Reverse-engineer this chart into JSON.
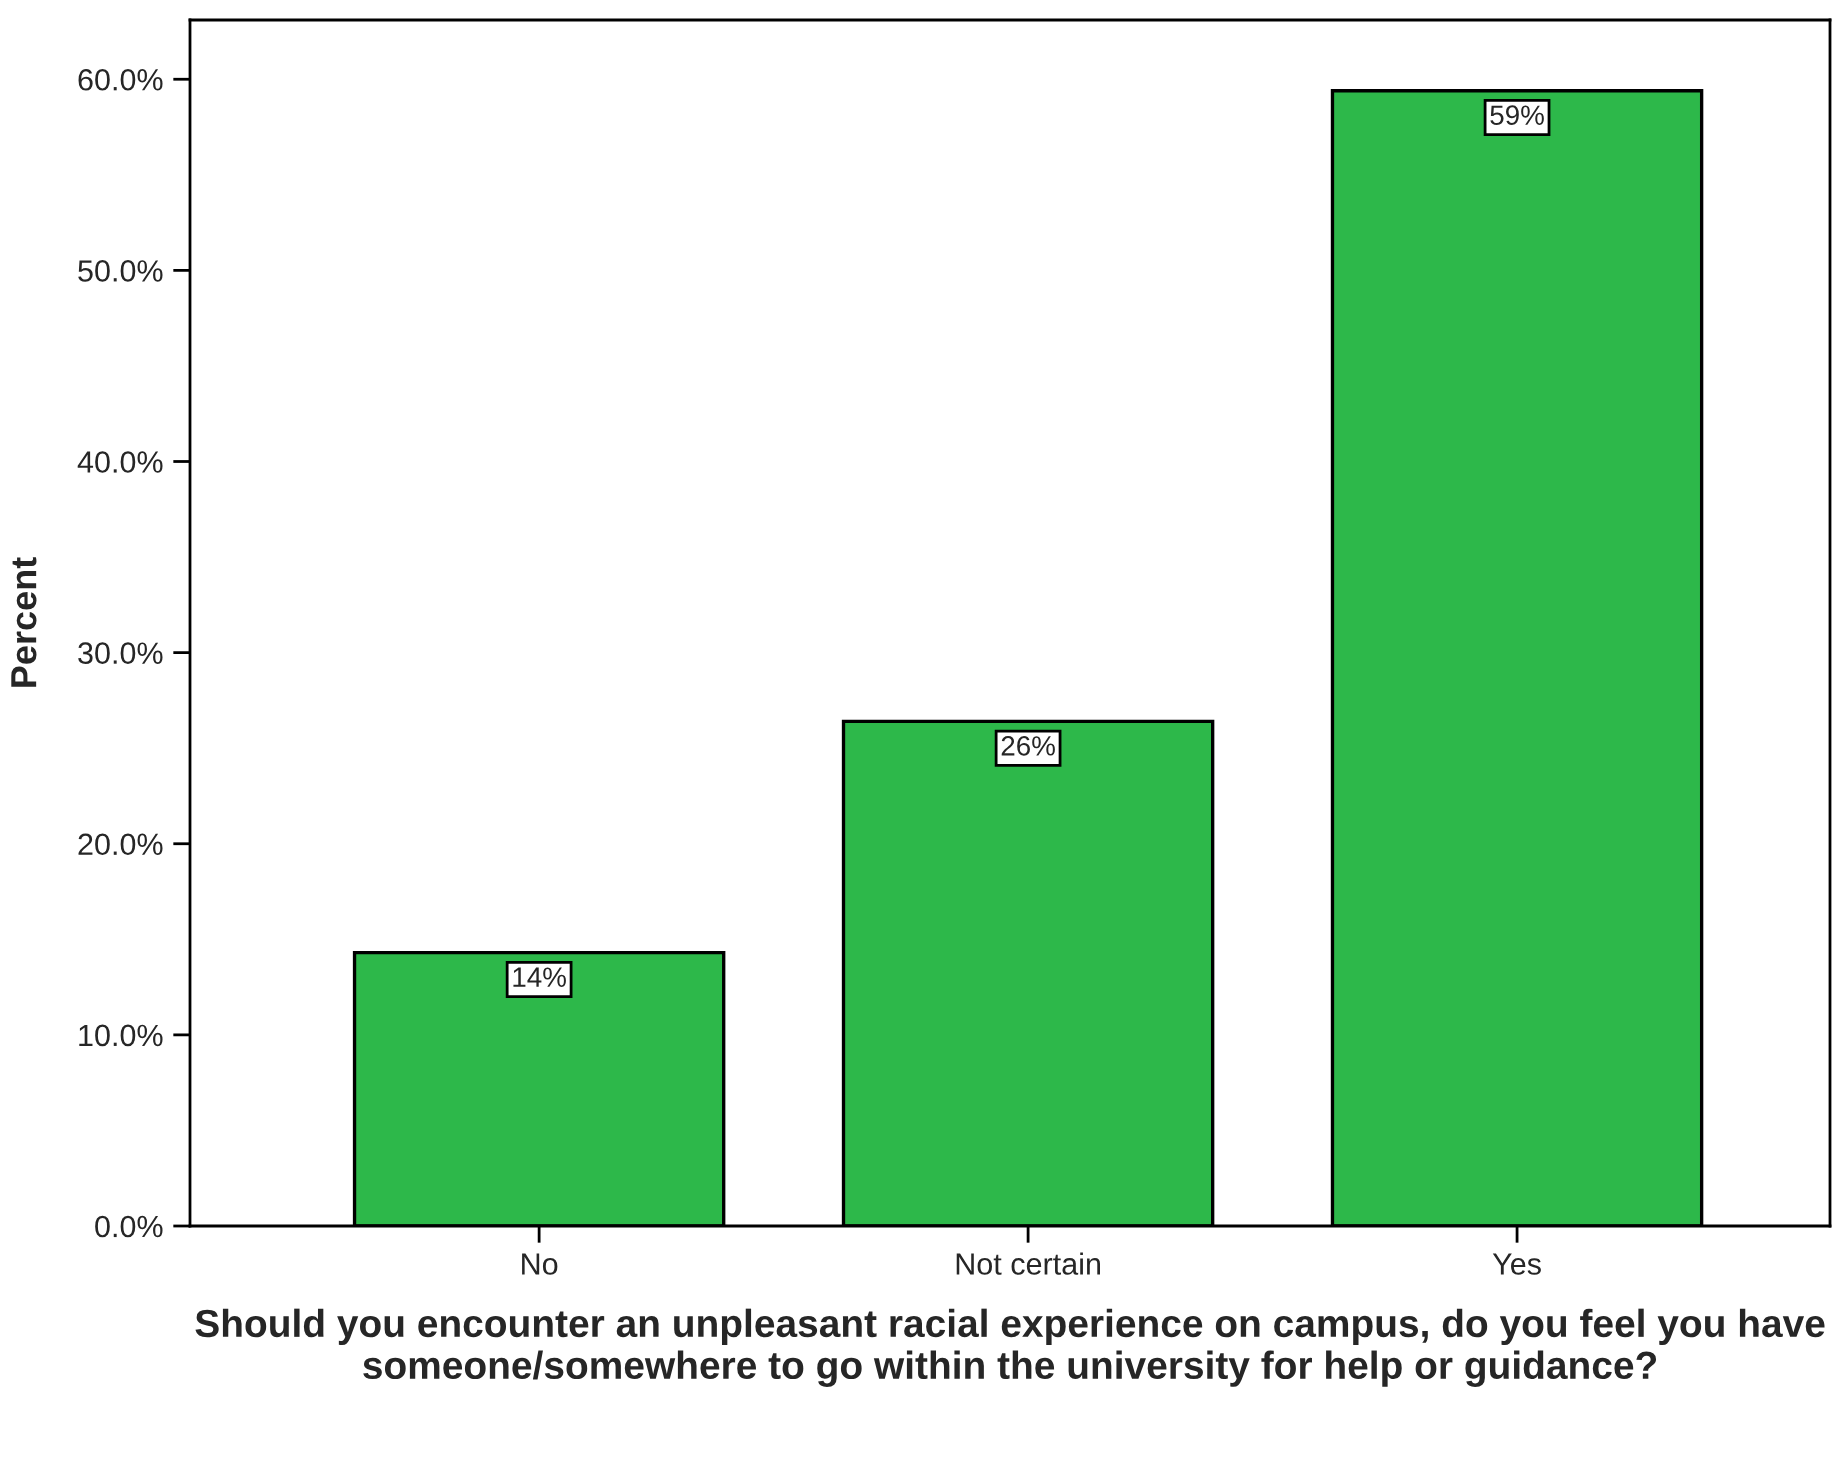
{
  "chart_data": {
    "type": "bar",
    "xlabel": "Should you encounter an unpleasant racial experience on campus, do you feel you have someone/somewhere to go within the university for help or guidance?",
    "ylabel": "Percent",
    "categories": [
      "No",
      "Not certain",
      "Yes"
    ],
    "values": [
      14.3,
      26.4,
      59.4
    ],
    "value_labels": [
      "14%",
      "26%",
      "59%"
    ],
    "color": "#2db84a",
    "ylim": [
      0,
      63.1
    ],
    "yticks": [
      {
        "value": 0,
        "label": "0.0%"
      },
      {
        "value": 10,
        "label": "10.0%"
      },
      {
        "value": 20,
        "label": "20.0%"
      },
      {
        "value": 30,
        "label": "30.0%"
      },
      {
        "value": 40,
        "label": "40.0%"
      },
      {
        "value": 50,
        "label": "50.0%"
      },
      {
        "value": 60,
        "label": "60.0%"
      }
    ],
    "grid": false,
    "legend": false
  }
}
